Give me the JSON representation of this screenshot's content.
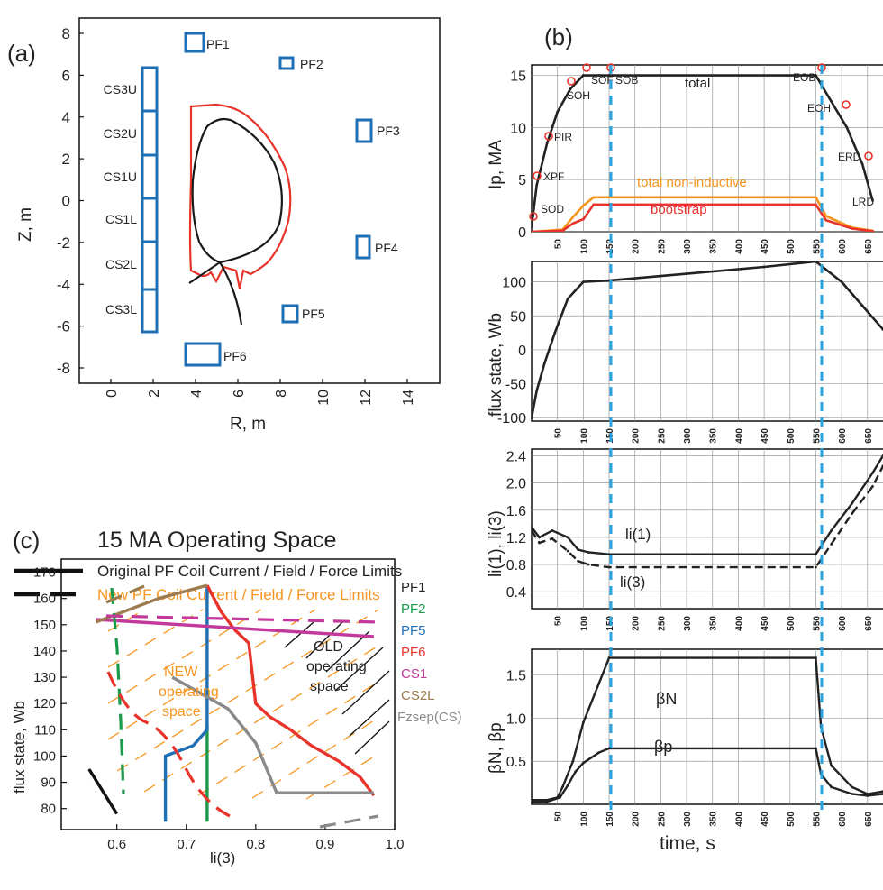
{
  "panels": {
    "a": {
      "label": "(a)",
      "xlabel": "R, m",
      "ylabel": "Z, m",
      "xticks": [
        0,
        2,
        4,
        6,
        8,
        10,
        12,
        14
      ],
      "yticks": [
        8,
        6,
        4,
        2,
        0,
        -2,
        -4,
        -6,
        -8
      ],
      "cs_labels": [
        "CS3U",
        "CS2U",
        "CS1U",
        "CS1L",
        "CS2L",
        "CS3L"
      ],
      "pf_labels": [
        "PF1",
        "PF2",
        "PF3",
        "PF4",
        "PF5",
        "PF6"
      ]
    },
    "b": {
      "label": "(b)",
      "xlabel": "time, s",
      "xticks": [
        50,
        100,
        150,
        200,
        250,
        300,
        350,
        400,
        450,
        500,
        550,
        600,
        650
      ],
      "ip": {
        "ylabel": "Ip, MA",
        "yticks": [
          0,
          5,
          10,
          15
        ],
        "events": [
          "SOD",
          "XPF",
          "PIR",
          "SOH",
          "SOF",
          "SOB",
          "EOB",
          "EOH",
          "ERD",
          "LRD"
        ],
        "series_labels": [
          "total",
          "total non-inductive",
          "bootstrap"
        ]
      },
      "flux": {
        "ylabel": "flux state, Wb",
        "yticks": [
          100,
          50,
          0,
          -50,
          -100
        ]
      },
      "li": {
        "ylabel": "li(1), li(3)",
        "yticks": [
          2.4,
          2.0,
          1.6,
          1.2,
          0.8,
          0.4
        ],
        "series_labels": [
          "li(1)",
          "li(3)"
        ]
      },
      "beta": {
        "ylabel": "βN, βp",
        "yticks": [
          1.5,
          1.0,
          0.5
        ],
        "series_labels": [
          "βN",
          "βp"
        ]
      }
    },
    "c": {
      "label": "(c)",
      "title": "15 MA Operating Space",
      "legend": [
        "Original PF Coil Current / Field / Force Limits",
        "New PF Coil Current / Field / Force Limits"
      ],
      "xlabel": "li(3)",
      "ylabel": "flux state, Wb",
      "xticks": [
        0.6,
        0.7,
        0.8,
        0.9,
        1.0
      ],
      "yticks": [
        170,
        160,
        150,
        140,
        130,
        120,
        110,
        100,
        90,
        80
      ],
      "coil_labels": [
        "PF1",
        "PF2",
        "PF5",
        "PF6",
        "CS1",
        "CS2L",
        "Fzsep(CS)"
      ],
      "old_space_label": [
        "OLD",
        "operating",
        "space"
      ],
      "new_space_label": [
        "NEW",
        "operating",
        "space"
      ]
    }
  },
  "colors": {
    "coil_blue": "#1f6fb5",
    "plasma_red": "#e8332a",
    "orange": "#f7941d",
    "green": "#1a9a4a",
    "magenta": "#c2389b",
    "brown": "#9c7b4e",
    "gray": "#8a8a8a",
    "dash_blue": "#2aa3df"
  },
  "chart_data": [
    {
      "type": "line",
      "panel": "b-ip",
      "xlabel": "time, s",
      "ylabel": "Ip, MA",
      "xlim": [
        0,
        680
      ],
      "ylim": [
        0,
        16
      ],
      "series": [
        {
          "name": "total",
          "x": [
            0,
            10,
            30,
            50,
            75,
            100,
            130,
            150,
            550,
            580,
            610,
            640,
            660
          ],
          "y": [
            0.5,
            4.5,
            8.5,
            11.5,
            13.7,
            15,
            15,
            15,
            15,
            12.5,
            10,
            6.5,
            3
          ]
        },
        {
          "name": "total non-inductive",
          "x": [
            0,
            60,
            80,
            100,
            120,
            150,
            550,
            570,
            620,
            660
          ],
          "y": [
            0,
            0.2,
            1.4,
            2.5,
            3.3,
            3.3,
            3.3,
            1.5,
            0.4,
            0.1
          ]
        },
        {
          "name": "bootstrap",
          "x": [
            0,
            60,
            80,
            100,
            120,
            150,
            550,
            570,
            620,
            660
          ],
          "y": [
            0,
            0.1,
            0.8,
            1.2,
            2.6,
            2.6,
            2.6,
            1.1,
            0.3,
            0.05
          ]
        }
      ]
    },
    {
      "type": "line",
      "panel": "b-flux",
      "xlabel": "time, s",
      "ylabel": "flux state, Wb",
      "xlim": [
        0,
        680
      ],
      "ylim": [
        -105,
        130
      ],
      "series": [
        {
          "x": [
            0,
            10,
            25,
            45,
            70,
            100,
            150,
            300,
            450,
            550,
            600,
            640,
            680
          ],
          "y": [
            -100,
            -60,
            -20,
            25,
            75,
            100,
            102,
            112,
            122,
            130,
            100,
            65,
            30
          ]
        }
      ]
    },
    {
      "type": "line",
      "panel": "b-li",
      "xlabel": "time, s",
      "ylabel": "li(1), li(3)",
      "xlim": [
        0,
        680
      ],
      "ylim": [
        0.15,
        2.5
      ],
      "series": [
        {
          "name": "li(1)",
          "x": [
            0,
            15,
            40,
            70,
            90,
            110,
            150,
            550,
            580,
            620,
            660,
            680
          ],
          "y": [
            1.35,
            1.2,
            1.3,
            1.2,
            1.02,
            0.98,
            0.95,
            0.95,
            1.3,
            1.7,
            2.15,
            2.4
          ]
        },
        {
          "name": "li(3)",
          "x": [
            0,
            15,
            40,
            70,
            90,
            110,
            150,
            550,
            580,
            620,
            660,
            680
          ],
          "y": [
            1.3,
            1.12,
            1.18,
            1.0,
            0.85,
            0.8,
            0.76,
            0.76,
            1.1,
            1.55,
            1.95,
            2.25
          ]
        }
      ]
    },
    {
      "type": "line",
      "panel": "b-beta",
      "xlabel": "time, s",
      "ylabel": "βN, βp",
      "xlim": [
        0,
        680
      ],
      "ylim": [
        0,
        1.8
      ],
      "series": [
        {
          "name": "βN",
          "x": [
            0,
            30,
            50,
            60,
            80,
            100,
            130,
            150,
            550,
            560,
            580,
            620,
            650,
            680
          ],
          "y": [
            0.05,
            0.05,
            0.08,
            0.2,
            0.5,
            0.95,
            1.4,
            1.7,
            1.7,
            0.9,
            0.45,
            0.2,
            0.12,
            0.15
          ]
        },
        {
          "name": "βp",
          "x": [
            0,
            30,
            55,
            70,
            85,
            100,
            130,
            150,
            550,
            560,
            580,
            620,
            650,
            680
          ],
          "y": [
            0.03,
            0.03,
            0.08,
            0.22,
            0.38,
            0.48,
            0.6,
            0.65,
            0.65,
            0.35,
            0.2,
            0.12,
            0.1,
            0.12
          ]
        }
      ]
    },
    {
      "type": "line",
      "panel": "c",
      "xlabel": "li(3)",
      "ylabel": "flux state, Wb",
      "xlim": [
        0.52,
        1.0
      ],
      "ylim": [
        72,
        175
      ],
      "series": [
        {
          "name": "PF1",
          "x": [
            0.56,
            0.6
          ],
          "y": [
            95,
            78
          ]
        },
        {
          "name": "PF2",
          "x": [
            0.73,
            0.73
          ],
          "y": [
            75,
            112
          ]
        },
        {
          "name": "PF5",
          "x": [
            0.73,
            0.73,
            0.71,
            0.67,
            0.67
          ],
          "y": [
            165,
            110,
            104,
            100,
            75
          ]
        },
        {
          "name": "PF6",
          "x": [
            0.73,
            0.75,
            0.77,
            0.79,
            0.8,
            0.82,
            0.85,
            0.88,
            0.92,
            0.95,
            0.97
          ],
          "y": [
            165,
            155,
            148,
            143,
            120,
            115,
            110,
            104,
            98,
            92,
            85
          ]
        },
        {
          "name": "CS1",
          "x": [
            0.57,
            0.97
          ],
          "y": [
            152,
            145.5
          ]
        },
        {
          "name": "CS2L",
          "x": [
            0.57,
            0.66,
            0.73
          ],
          "y": [
            151,
            160,
            165
          ]
        },
        {
          "name": "Fzsep(CS)",
          "x": [
            0.68,
            0.76,
            0.8,
            0.83,
            0.97
          ],
          "y": [
            130,
            118,
            105,
            86,
            86
          ]
        }
      ]
    }
  ]
}
